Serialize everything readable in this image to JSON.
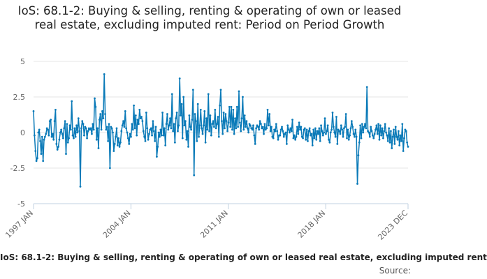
{
  "chart_data": {
    "type": "line",
    "title": "IoS: 68.1-2: Buying & selling, renting & operating of own or leased real estate, excluding imputed rent: Period on Period Growth",
    "x_tick_labels": [
      "1997 JAN",
      "2004 JAN",
      "2011 JAN",
      "2018 JAN",
      "2023 DEC"
    ],
    "x_start": "1997-01",
    "x_end": "2023-12",
    "ylim": [
      -5,
      5
    ],
    "y_ticks": [
      5,
      2.5,
      0,
      -2.5,
      -5
    ],
    "y_tick_labels": [
      "5",
      "2.5",
      "0",
      "-2.5",
      "-5"
    ],
    "grid": true,
    "legend_position": "bottom",
    "series": [
      {
        "name": "IoS: 68.1-2: Buying & selling, renting & operating of own or leased real estate, excluding imputed rent",
        "color": "#0a7ab8",
        "values": [
          1.5,
          -0.2,
          -1.3,
          -2.0,
          -1.8,
          0.0,
          0.2,
          -0.6,
          -1.5,
          -0.3,
          -2.0,
          -0.5,
          -0.3,
          -0.1,
          0.3,
          0.2,
          -0.2,
          0.8,
          0.9,
          -0.3,
          -0.1,
          -0.5,
          0.8,
          1.6,
          -0.8,
          -1.2,
          -1.0,
          -0.5,
          0.0,
          0.2,
          -0.1,
          -0.4,
          0.3,
          0.8,
          -1.5,
          0.6,
          -0.7,
          -0.4,
          0.5,
          0.2,
          2.2,
          -0.2,
          -0.4,
          0.3,
          -0.3,
          0.5,
          0.0,
          1.0,
          0.1,
          -3.8,
          0.3,
          0.8,
          0.6,
          -0.2,
          0.4,
          0.3,
          -0.4,
          0.1,
          0.3,
          0.2,
          0.3,
          -0.1,
          0.6,
          0.2,
          2.4,
          1.8,
          -0.5,
          0.3,
          -1.1,
          0.9,
          1.3,
          0.2,
          1.5,
          1.0,
          4.1,
          1.3,
          0.2,
          0.4,
          -0.6,
          0.6,
          -2.5,
          0.4,
          0.3,
          0.0,
          -1.3,
          -0.8,
          -0.3,
          0.3,
          -0.9,
          -0.4,
          -1.0,
          -0.7,
          0.1,
          0.5,
          0.8,
          0.4,
          1.5,
          0.3,
          0.0,
          -0.4,
          -0.8,
          -0.1,
          -0.3,
          0.6,
          0.2,
          1.9,
          0.3,
          1.2,
          -0.2,
          0.9,
          0.6,
          1.6,
          1.0,
          1.1,
          0.8,
          0.1,
          -0.3,
          -0.6,
          1.4,
          0.3,
          -0.5,
          -0.1,
          0.2,
          0.3,
          -0.2,
          0.8,
          0.1,
          -0.6,
          0.4,
          -1.7,
          -1.0,
          0.0,
          -0.3,
          0.2,
          -0.2,
          1.4,
          -0.2,
          0.3,
          -0.9,
          0.6,
          1.3,
          0.2,
          0.5,
          1.0,
          0.3,
          2.7,
          0.1,
          0.6,
          -0.7,
          1.0,
          1.4,
          0.1,
          0.5,
          3.8,
          1.2,
          2.0,
          -0.4,
          2.5,
          0.5,
          0.8,
          -0.5,
          0.1,
          -1.0,
          1.2,
          0.4,
          0.2,
          0.9,
          3.0,
          -3.0,
          1.3,
          0.8,
          -0.6,
          2.0,
          -0.3,
          0.5,
          1.6,
          0.3,
          -0.1,
          0.5,
          1.5,
          -0.7,
          1.0,
          0.2,
          2.7,
          0.1,
          1.2,
          -0.2,
          0.6,
          0.8,
          0.4,
          1.6,
          0.3,
          0.6,
          1.1,
          -0.3,
          1.9,
          3.0,
          0.8,
          -0.1,
          1.4,
          0.3,
          1.3,
          0.8,
          0.1,
          0.7,
          1.8,
          0.4,
          1.8,
          0.2,
          1.6,
          -0.1,
          1.0,
          0.3,
          1.8,
          0.4,
          2.9,
          0.7,
          0.1,
          1.0,
          2.5,
          0.2,
          1.2,
          0.4,
          0.8,
          0.3,
          0.0,
          0.6,
          0.5,
          0.3,
          0.2,
          0.5,
          -0.2,
          -0.8,
          0.3,
          0.5,
          0.4,
          0.2,
          0.8,
          0.6,
          0.3,
          0.4,
          -0.1,
          0.6,
          0.2,
          0.3,
          1.6,
          0.5,
          1.3,
          0.1,
          0.4,
          -0.3,
          -0.4,
          0.2,
          0.1,
          0.6,
          0.1,
          -0.5,
          -0.2,
          -0.2,
          0.2,
          0.4,
          0.1,
          -0.3,
          -0.1,
          0.0,
          -0.8,
          0.5,
          0.2,
          0.0,
          0.3,
          0.1,
          0.9,
          -0.4,
          -0.2,
          -0.5,
          -0.3,
          0.4,
          -0.1,
          0.7,
          0.2,
          0.4,
          -0.3,
          -0.4,
          0.2,
          0.3,
          -0.5,
          0.2,
          -0.6,
          0.1,
          0.3,
          -0.2,
          -0.1,
          -0.9,
          0.2,
          -0.4,
          0.3,
          -0.5,
          0.1,
          -0.1,
          0.3,
          -0.6,
          0.5,
          0.1,
          -0.2,
          0.0,
          1.0,
          -0.1,
          0.1,
          0.5,
          -0.5,
          -0.7,
          0.0,
          0.2,
          1.4,
          0.4,
          0.0,
          -0.3,
          1.1,
          -0.8,
          0.2,
          0.1,
          -0.1,
          0.5,
          0.2,
          -0.3,
          0.3,
          0.4,
          1.3,
          -0.4,
          0.2,
          -0.5,
          -0.2,
          0.3,
          0.8,
          0.4,
          -0.1,
          -0.3,
          0.2,
          -0.3,
          -3.6,
          -1.6,
          -0.7,
          0.5,
          -0.4,
          0.6,
          0.0,
          0.4,
          0.6,
          0.3,
          3.2,
          0.1,
          0.0,
          -0.3,
          0.4,
          0.1,
          -0.2,
          -0.4,
          -0.1,
          0.2,
          0.5,
          -0.1,
          0.6,
          -0.5,
          0.5,
          -0.2,
          0.3,
          -0.4,
          0.1,
          0.6,
          0.0,
          -0.2,
          -0.6,
          0.3,
          -0.7,
          0.1,
          -1.1,
          -0.3,
          0.2,
          -0.8,
          0.4,
          -0.3,
          -0.5,
          0.1,
          -0.9,
          -0.2,
          -0.6,
          0.6,
          -1.3,
          -0.4,
          0.2,
          0.1,
          -0.7,
          -1.0
        ]
      }
    ],
    "source_label": "Source:"
  }
}
